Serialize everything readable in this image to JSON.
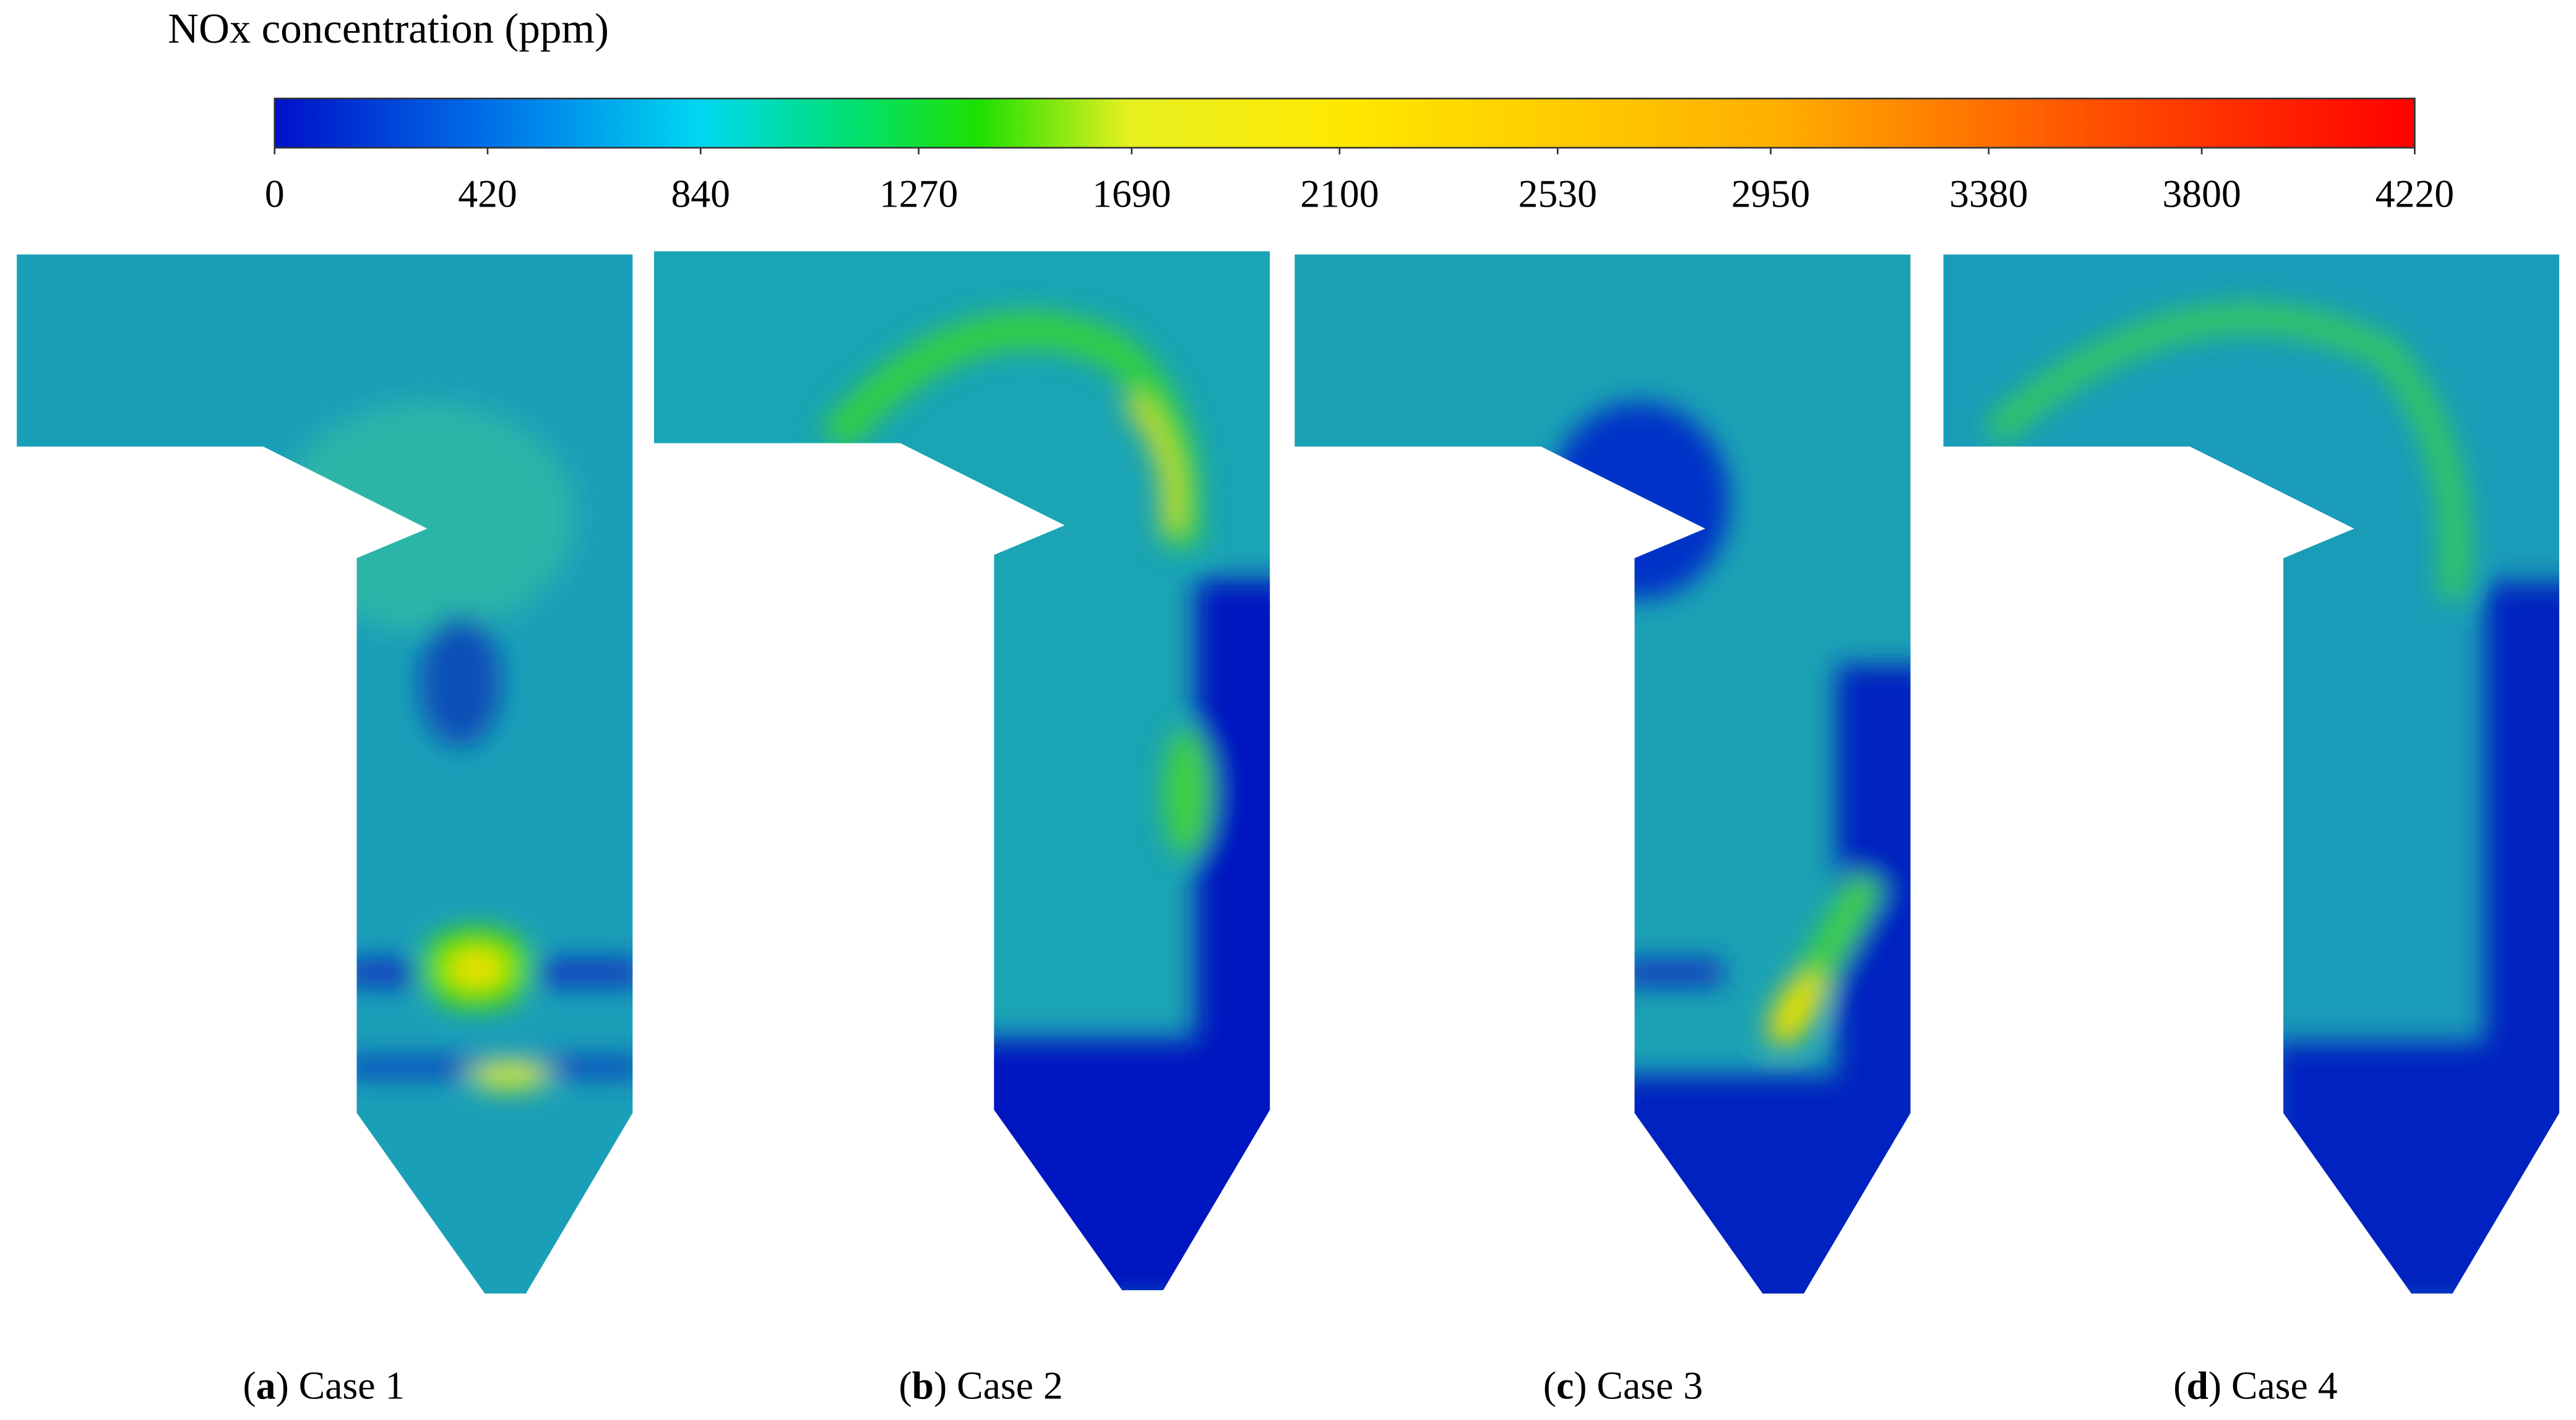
{
  "colorbar": {
    "title": "NOx concentration (ppm)",
    "range": [
      0,
      4220
    ],
    "ticks": [
      0,
      420,
      840,
      1270,
      1690,
      2100,
      2530,
      2950,
      3380,
      3800,
      4220
    ]
  },
  "panels": [
    {
      "caption": [
        "(",
        "a",
        ") Case 1"
      ]
    },
    {
      "caption": [
        "(",
        "b",
        ") Case 2"
      ]
    },
    {
      "caption": [
        "(",
        "c",
        ") Case 3"
      ]
    },
    {
      "caption": [
        "(",
        "d",
        ") Case 4"
      ]
    }
  ]
}
